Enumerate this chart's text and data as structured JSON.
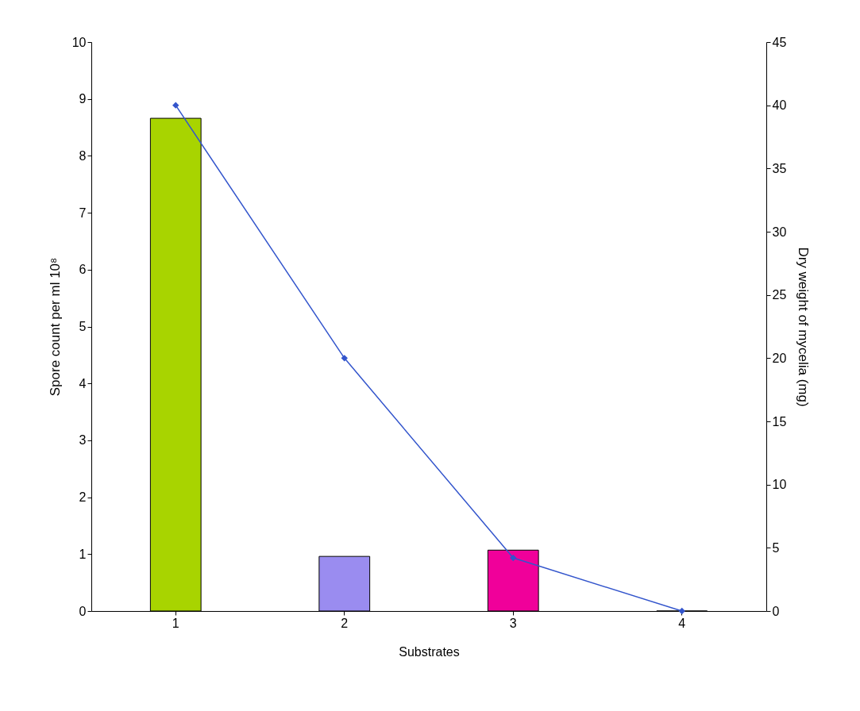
{
  "chart_data": {
    "type": "bar",
    "xlabel": "Substrates",
    "ylabel": "Spore count per ml 10⁸",
    "y2label": "Dry weight of mycelia (mg)",
    "categories": [
      "1",
      "2",
      "3",
      "4"
    ],
    "series": [
      {
        "values": [
          8.66,
          0.96,
          1.07,
          0
        ],
        "colors": [
          "#a8d400",
          "#9a8cf0",
          "#f0009a",
          "#000000"
        ]
      },
      {
        "type": "line",
        "axis": "y2",
        "values": [
          40,
          20,
          4.2,
          0
        ],
        "color": "#3355cc",
        "marker": "diamond",
        "line_style": "solid"
      }
    ],
    "ylim": [
      0,
      10
    ],
    "yticks": [
      0,
      1,
      2,
      3,
      4,
      5,
      6,
      7,
      8,
      9,
      10
    ],
    "y2lim": [
      0,
      45
    ],
    "y2ticks": [
      0,
      5,
      10,
      15,
      20,
      25,
      30,
      35,
      40,
      45
    ]
  }
}
